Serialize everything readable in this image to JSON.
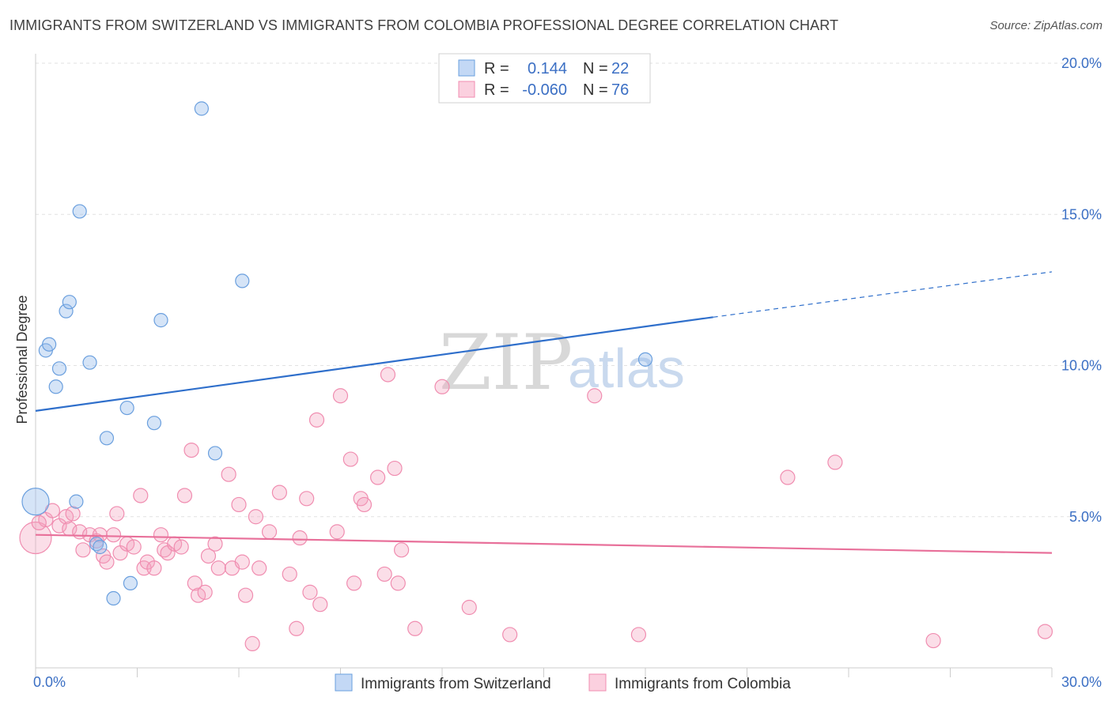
{
  "title": "IMMIGRANTS FROM SWITZERLAND VS IMMIGRANTS FROM COLOMBIA PROFESSIONAL DEGREE CORRELATION CHART",
  "source": "Source: ZipAtlas.com",
  "watermark": {
    "zip": "ZIP",
    "atlas": "atlas"
  },
  "legend": {
    "rows": [
      {
        "r_label": "R =",
        "r_value": "0.144",
        "n_label": "N =",
        "n_value": "22"
      },
      {
        "r_label": "R =",
        "r_value": "-0.060",
        "n_label": "N =",
        "n_value": "76"
      }
    ]
  },
  "chart_data": {
    "type": "scatter",
    "title": "IMMIGRANTS FROM SWITZERLAND VS IMMIGRANTS FROM COLOMBIA PROFESSIONAL DEGREE CORRELATION CHART",
    "xlabel": "",
    "ylabel": "Professional Degree",
    "xlim": [
      0,
      30
    ],
    "ylim": [
      0,
      20
    ],
    "x_ticks": [
      "0.0%",
      "30.0%"
    ],
    "y_ticks": [
      "5.0%",
      "10.0%",
      "15.0%",
      "20.0%"
    ],
    "y_tick_values": [
      5,
      10,
      15,
      20
    ],
    "grid": true,
    "legend_position": "bottom",
    "colors": {
      "switzerland": "#6a9fde",
      "colombia": "#f08db0",
      "switzerland_line": "#2f6fcb",
      "colombia_line": "#e8709a"
    },
    "series": [
      {
        "name": "Immigrants from Switzerland",
        "points": [
          [
            0.0,
            5.5
          ],
          [
            0.3,
            10.5
          ],
          [
            0.4,
            10.7
          ],
          [
            0.6,
            9.3
          ],
          [
            0.7,
            9.9
          ],
          [
            0.9,
            11.8
          ],
          [
            1.0,
            12.1
          ],
          [
            1.2,
            5.5
          ],
          [
            1.3,
            15.1
          ],
          [
            1.6,
            10.1
          ],
          [
            1.8,
            4.1
          ],
          [
            1.9,
            4.0
          ],
          [
            2.1,
            7.6
          ],
          [
            2.3,
            2.3
          ],
          [
            2.7,
            8.6
          ],
          [
            2.8,
            2.8
          ],
          [
            3.5,
            8.1
          ],
          [
            3.7,
            11.5
          ],
          [
            4.9,
            18.5
          ],
          [
            5.3,
            7.1
          ],
          [
            6.1,
            12.8
          ],
          [
            18.0,
            10.2
          ]
        ],
        "trend": {
          "x0": 0,
          "y0": 8.5,
          "x1": 20,
          "y1": 11.6,
          "x_dash_end": 30,
          "y_dash_end": 13.1
        }
      },
      {
        "name": "Immigrants from Colombia",
        "points": [
          [
            0.0,
            4.3
          ],
          [
            0.3,
            4.9
          ],
          [
            0.5,
            5.2
          ],
          [
            0.7,
            4.7
          ],
          [
            0.9,
            5.0
          ],
          [
            1.0,
            4.6
          ],
          [
            1.1,
            5.1
          ],
          [
            1.3,
            4.5
          ],
          [
            1.4,
            3.9
          ],
          [
            1.6,
            4.4
          ],
          [
            1.8,
            4.2
          ],
          [
            1.9,
            4.4
          ],
          [
            2.0,
            3.7
          ],
          [
            2.1,
            3.5
          ],
          [
            2.3,
            4.4
          ],
          [
            2.4,
            5.1
          ],
          [
            2.5,
            3.8
          ],
          [
            2.7,
            4.1
          ],
          [
            2.9,
            4.0
          ],
          [
            3.1,
            5.7
          ],
          [
            3.2,
            3.3
          ],
          [
            3.3,
            3.5
          ],
          [
            3.5,
            3.3
          ],
          [
            3.7,
            4.4
          ],
          [
            3.8,
            3.9
          ],
          [
            3.9,
            3.8
          ],
          [
            4.1,
            4.1
          ],
          [
            4.3,
            4.0
          ],
          [
            4.4,
            5.7
          ],
          [
            4.6,
            7.2
          ],
          [
            4.7,
            2.8
          ],
          [
            4.8,
            2.4
          ],
          [
            5.0,
            2.5
          ],
          [
            5.1,
            3.7
          ],
          [
            5.3,
            4.1
          ],
          [
            5.4,
            3.3
          ],
          [
            5.7,
            6.4
          ],
          [
            5.8,
            3.3
          ],
          [
            6.0,
            5.4
          ],
          [
            6.1,
            3.5
          ],
          [
            6.2,
            2.4
          ],
          [
            6.4,
            0.8
          ],
          [
            6.5,
            5.0
          ],
          [
            6.6,
            3.3
          ],
          [
            6.9,
            4.5
          ],
          [
            7.2,
            5.8
          ],
          [
            7.5,
            3.1
          ],
          [
            7.7,
            1.3
          ],
          [
            7.8,
            4.3
          ],
          [
            8.0,
            5.6
          ],
          [
            8.1,
            2.5
          ],
          [
            8.3,
            8.2
          ],
          [
            8.4,
            2.1
          ],
          [
            8.9,
            4.5
          ],
          [
            9.0,
            9.0
          ],
          [
            9.3,
            6.9
          ],
          [
            9.4,
            2.8
          ],
          [
            9.6,
            5.6
          ],
          [
            9.7,
            5.4
          ],
          [
            10.1,
            6.3
          ],
          [
            10.3,
            3.1
          ],
          [
            10.4,
            9.7
          ],
          [
            10.6,
            6.6
          ],
          [
            10.7,
            2.8
          ],
          [
            10.8,
            3.9
          ],
          [
            11.2,
            1.3
          ],
          [
            12.0,
            9.3
          ],
          [
            12.8,
            2.0
          ],
          [
            14.0,
            1.1
          ],
          [
            16.5,
            9.0
          ],
          [
            17.8,
            1.1
          ],
          [
            22.2,
            6.3
          ],
          [
            23.6,
            6.8
          ],
          [
            26.5,
            0.9
          ],
          [
            29.8,
            1.2
          ],
          [
            0.1,
            4.8
          ]
        ],
        "trend": {
          "x0": 0,
          "y0": 4.4,
          "x1": 30,
          "y1": 3.8
        }
      }
    ]
  }
}
